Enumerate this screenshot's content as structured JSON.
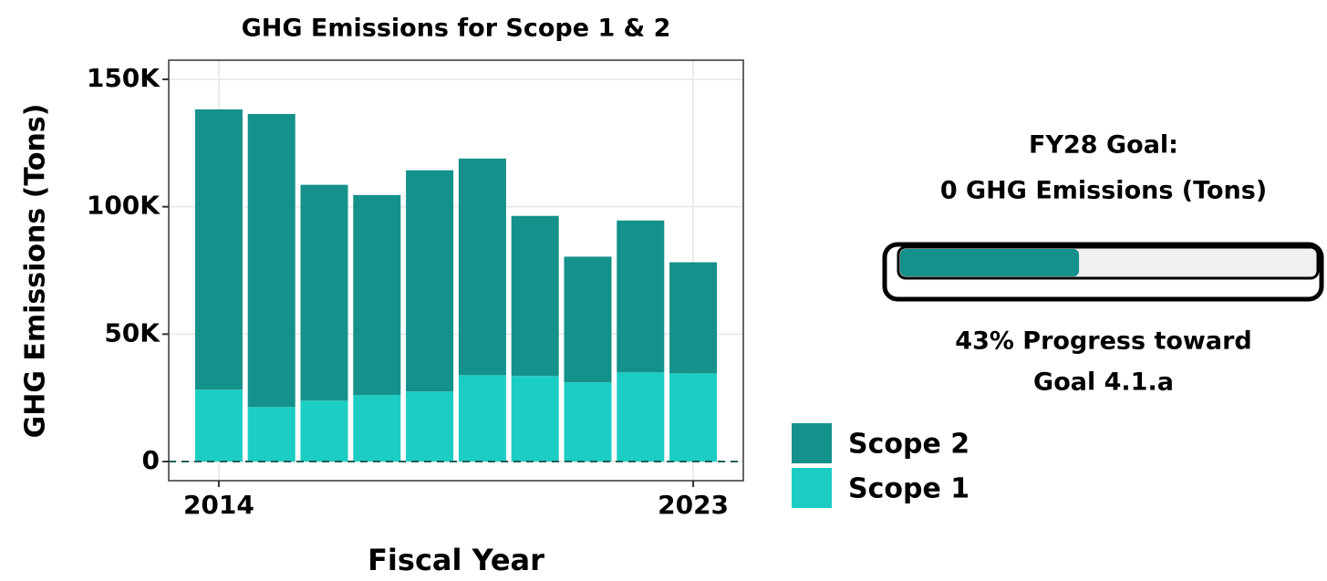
{
  "chart_data": {
    "type": "stacked_bar",
    "title": "GHG Emissions for Scope 1 & 2",
    "x_label": "Fiscal Year",
    "y_label": "GHG Emissions (Tons)",
    "x": [
      2014,
      2015,
      2016,
      2017,
      2018,
      2019,
      2020,
      2021,
      2022,
      2023
    ],
    "series": [
      {
        "name": "Scope 1",
        "color": "#1ccdc4",
        "values": [
          28200,
          21400,
          23900,
          26100,
          27500,
          33900,
          33600,
          31100,
          35000,
          34600
        ]
      },
      {
        "name": "Scope 2",
        "color": "#14918a",
        "values": [
          110000,
          115000,
          84700,
          78500,
          86800,
          85000,
          62800,
          49300,
          59600,
          43600
        ]
      }
    ],
    "xlim": [
      2013.05,
      2023.95
    ],
    "xticks": [
      2014,
      2023
    ],
    "ylim": [
      -7500,
      157500
    ],
    "yticks": [
      0,
      {
        "value": 50000,
        "label": "50K"
      },
      {
        "value": 100000,
        "label": "100K"
      },
      {
        "value": 150000,
        "label": "150K"
      }
    ],
    "reference_line": 0,
    "grid": true,
    "legend_position": "right",
    "goal": {
      "title_lines": [
        "FY28 Goal:",
        "0 GHG Emissions (Tons)"
      ]
    },
    "progress": {
      "value": 43,
      "color": "#14918a",
      "label_lines": [
        "43% Progress toward",
        "Goal 4.1.a"
      ]
    }
  }
}
